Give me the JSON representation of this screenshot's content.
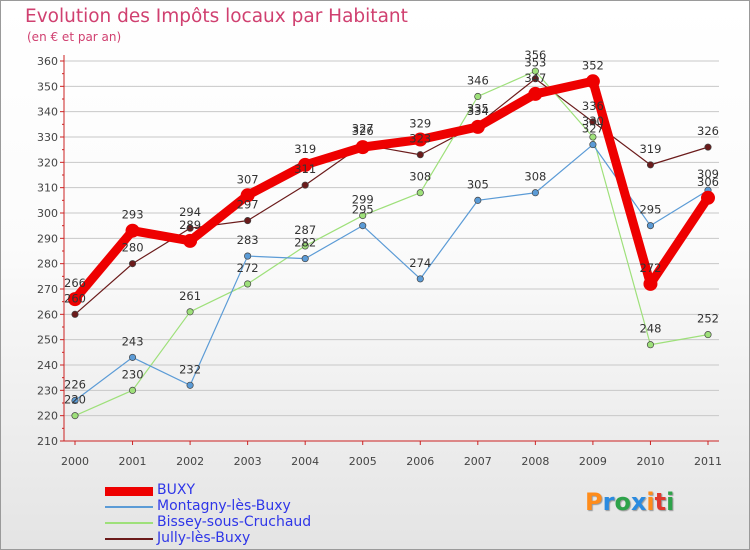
{
  "header": {
    "title": "Evolution des Impôts locaux par Habitant",
    "subtitle": "(en € et par an)"
  },
  "brand": {
    "logo_text": "Proxiti",
    "logo_colors": [
      "#ff8c1a",
      "#2b8be0",
      "#2ea34a",
      "#2b8be0",
      "#ff8c1a",
      "#e03a2e",
      "#2ea34a"
    ]
  },
  "chart_data": {
    "type": "line",
    "x": [
      "2000",
      "2001",
      "2002",
      "2003",
      "2004",
      "2005",
      "2006",
      "2007",
      "2008",
      "2009",
      "2010",
      "2011"
    ],
    "ylim": [
      210,
      360
    ],
    "yticks": [
      210,
      220,
      230,
      240,
      250,
      260,
      270,
      280,
      290,
      300,
      310,
      320,
      330,
      340,
      350,
      360
    ],
    "grid": "horizontal",
    "legend_position": "bottom-left",
    "series": [
      {
        "name": "Jully-lès-Buxy",
        "color": "#6b1b1b",
        "values": [
          260,
          280,
          294,
          297,
          311,
          327,
          323,
          335,
          353,
          336,
          319,
          326
        ],
        "labels": [
          "260",
          "280",
          "294",
          "297",
          "311",
          "327",
          "323",
          "335",
          "353",
          "336",
          "319",
          "326"
        ]
      },
      {
        "name": "Bissey-sous-Cruchaud",
        "color": "#9ee07a",
        "values": [
          220,
          230,
          261,
          272,
          287,
          299,
          308,
          346,
          356,
          330,
          248,
          252
        ],
        "labels": [
          "220",
          "230",
          "261",
          "272",
          "287",
          "299",
          "308",
          "346",
          "356",
          "330",
          "248",
          "252"
        ]
      },
      {
        "name": "Montagny-lès-Buxy",
        "color": "#5b9bd6",
        "values": [
          226,
          243,
          232,
          283,
          282,
          295,
          274,
          305,
          308,
          327,
          295,
          309
        ],
        "labels": [
          "226",
          "243",
          "232",
          "283",
          "282",
          "295",
          "274",
          "305",
          "308",
          "327",
          "295",
          "309"
        ]
      },
      {
        "name": "BUXY",
        "color": "#ee0000",
        "values": [
          266,
          293,
          289,
          307,
          319,
          326,
          329,
          334,
          347,
          352,
          272,
          306
        ],
        "labels": [
          "266",
          "293",
          "289",
          "307",
          "319",
          "326",
          "329",
          "334",
          "347",
          "352",
          "272",
          "306"
        ]
      }
    ],
    "legend_order": [
      "BUXY",
      "Montagny-lès-Buxy",
      "Bissey-sous-Cruchaud",
      "Jully-lès-Buxy"
    ]
  }
}
